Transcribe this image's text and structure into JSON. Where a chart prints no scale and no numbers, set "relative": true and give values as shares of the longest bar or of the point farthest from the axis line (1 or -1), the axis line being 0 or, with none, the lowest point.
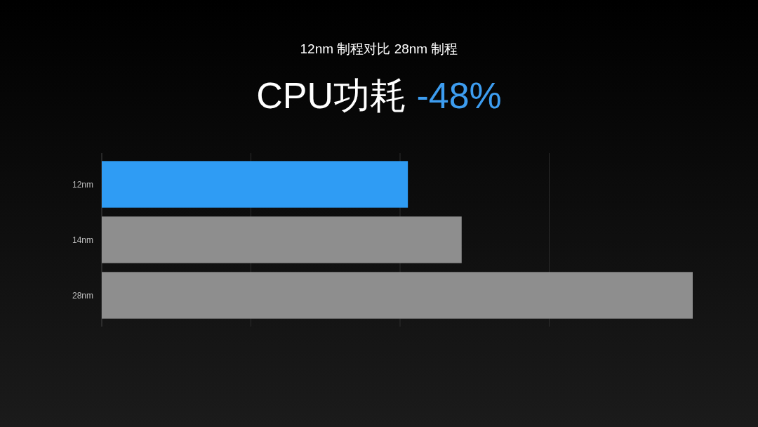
{
  "chart_data": {
    "type": "bar",
    "orientation": "horizontal",
    "relative": true,
    "grid": "x",
    "title": "12nm 制程对比 28nm 制程",
    "subtitle": "CPU功耗 -48%",
    "categories": [
      "12nm",
      "14nm",
      "28nm"
    ],
    "values": [
      0.518,
      0.609,
      1
    ],
    "colors": [
      "#2f9cf4",
      "#8e8e8e",
      "#8e8e8e"
    ]
  }
}
